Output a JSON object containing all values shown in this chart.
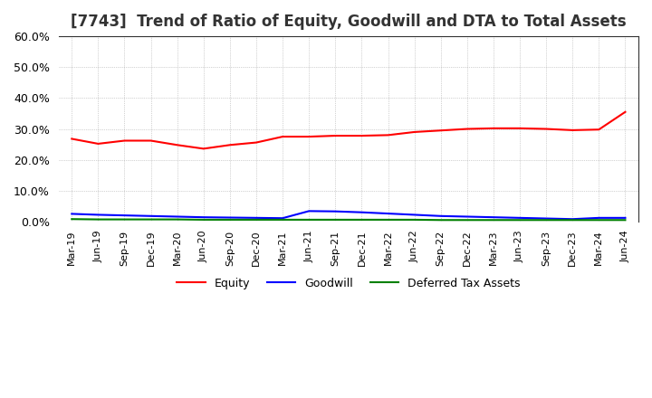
{
  "title": "[7743]  Trend of Ratio of Equity, Goodwill and DTA to Total Assets",
  "title_fontsize": 12,
  "background_color": "#ffffff",
  "grid_color": "#aaaaaa",
  "ylim": [
    0.0,
    0.6
  ],
  "yticks": [
    0.0,
    0.1,
    0.2,
    0.3,
    0.4,
    0.5,
    0.6
  ],
  "x_labels": [
    "Mar-19",
    "Jun-19",
    "Sep-19",
    "Dec-19",
    "Mar-20",
    "Jun-20",
    "Sep-20",
    "Dec-20",
    "Mar-21",
    "Jun-21",
    "Sep-21",
    "Dec-21",
    "Mar-22",
    "Jun-22",
    "Sep-22",
    "Dec-22",
    "Mar-23",
    "Jun-23",
    "Sep-23",
    "Dec-23",
    "Mar-24",
    "Jun-24"
  ],
  "equity": [
    0.268,
    0.252,
    0.262,
    0.262,
    0.248,
    0.236,
    0.248,
    0.256,
    0.275,
    0.275,
    0.278,
    0.278,
    0.28,
    0.29,
    0.295,
    0.3,
    0.302,
    0.302,
    0.3,
    0.296,
    0.298,
    0.355
  ],
  "goodwill": [
    0.025,
    0.022,
    0.02,
    0.018,
    0.016,
    0.014,
    0.013,
    0.012,
    0.011,
    0.034,
    0.033,
    0.03,
    0.026,
    0.022,
    0.018,
    0.016,
    0.014,
    0.012,
    0.01,
    0.008,
    0.012,
    0.012
  ],
  "dta": [
    0.008,
    0.007,
    0.007,
    0.007,
    0.007,
    0.006,
    0.006,
    0.006,
    0.006,
    0.006,
    0.006,
    0.006,
    0.006,
    0.006,
    0.005,
    0.005,
    0.005,
    0.005,
    0.005,
    0.005,
    0.005,
    0.005
  ],
  "equity_color": "#ff0000",
  "goodwill_color": "#0000ff",
  "dta_color": "#008000",
  "legend_labels": [
    "Equity",
    "Goodwill",
    "Deferred Tax Assets"
  ],
  "line_width": 1.5
}
